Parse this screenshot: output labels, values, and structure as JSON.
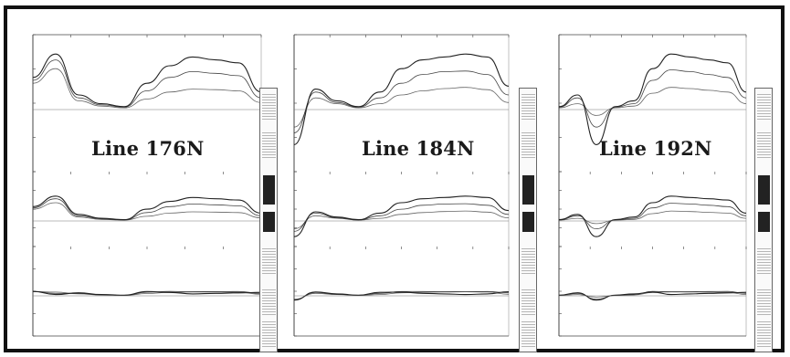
{
  "panels": [
    {
      "title": "Line 176N"
    },
    {
      "title": "Line 184N"
    },
    {
      "title": "Line 192N"
    }
  ],
  "colors": {
    "frame": "#111111",
    "curve": "#222222",
    "axis": "#444444",
    "background": "#ffffff"
  },
  "chart_data": [
    {
      "type": "line",
      "title": "Line 176N",
      "note": "Stacked profile plots (top, middle, bottom); tick labels illegible at this resolution",
      "x": [
        0,
        10,
        20,
        30,
        40,
        50,
        60,
        70,
        80,
        90,
        100
      ],
      "series": [
        {
          "values": [
            0.55,
            0.95,
            0.25,
            0.1,
            0.05,
            0.45,
            0.75,
            0.9,
            0.85,
            0.8,
            0.3
          ]
        },
        {
          "values": [
            0.5,
            0.85,
            0.2,
            0.08,
            0.04,
            0.32,
            0.55,
            0.65,
            0.62,
            0.58,
            0.2
          ]
        },
        {
          "values": [
            0.45,
            0.7,
            0.15,
            0.06,
            0.03,
            0.18,
            0.3,
            0.35,
            0.34,
            0.32,
            0.12
          ]
        }
      ]
    },
    {
      "type": "line",
      "title": "Line 184N",
      "note": "Stacked profile plots (top, middle, bottom); tick labels illegible at this resolution",
      "x": [
        0,
        10,
        20,
        30,
        40,
        50,
        60,
        70,
        80,
        90,
        100
      ],
      "series": [
        {
          "values": [
            -0.6,
            0.35,
            0.15,
            0.05,
            0.3,
            0.7,
            0.85,
            0.9,
            0.95,
            0.9,
            0.4
          ]
        },
        {
          "values": [
            -0.4,
            0.3,
            0.12,
            0.04,
            0.2,
            0.45,
            0.6,
            0.65,
            0.66,
            0.6,
            0.25
          ]
        },
        {
          "values": [
            -0.3,
            0.2,
            0.1,
            0.03,
            0.1,
            0.25,
            0.32,
            0.36,
            0.38,
            0.34,
            0.12
          ]
        }
      ]
    },
    {
      "type": "line",
      "title": "Line 192N",
      "note": "Stacked profile plots (top, middle, bottom); tick labels illegible at this resolution",
      "x": [
        0,
        10,
        20,
        30,
        40,
        50,
        60,
        70,
        80,
        90,
        100
      ],
      "series": [
        {
          "values": [
            0.05,
            0.25,
            -0.6,
            0.05,
            0.15,
            0.7,
            0.95,
            0.9,
            0.85,
            0.8,
            0.3
          ]
        },
        {
          "values": [
            0.04,
            0.2,
            -0.3,
            0.04,
            0.1,
            0.5,
            0.68,
            0.65,
            0.6,
            0.55,
            0.2
          ]
        },
        {
          "values": [
            0.03,
            0.1,
            -0.1,
            0.03,
            0.06,
            0.28,
            0.38,
            0.36,
            0.33,
            0.3,
            0.1
          ]
        }
      ]
    }
  ]
}
